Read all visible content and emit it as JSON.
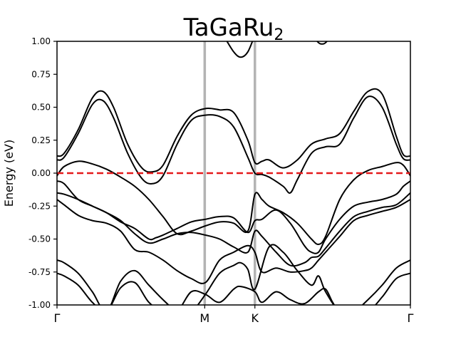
{
  "chart_data": {
    "type": "line",
    "title": "TaGaRu",
    "title_subscript": "2",
    "ylabel": "Energy (eV)",
    "xlabel": "",
    "ylim": [
      -1.0,
      1.0
    ],
    "yticks": [
      "1.00",
      "0.75",
      "0.50",
      "0.25",
      "0.00",
      "-0.25",
      "-0.50",
      "-0.75",
      "-1.00"
    ],
    "ytick_values": [
      1.0,
      0.75,
      0.5,
      0.25,
      0.0,
      -0.25,
      -0.5,
      -0.75,
      -1.0
    ],
    "xlim": [
      0,
      1
    ],
    "kpoints": [
      {
        "label": "Γ",
        "x": 0.0
      },
      {
        "label": "M",
        "x": 0.418
      },
      {
        "label": "K",
        "x": 0.56
      },
      {
        "label": "Γ",
        "x": 1.0
      }
    ],
    "fermi_level": {
      "y": 0.0,
      "color": "#e41a1c",
      "style": "dashed"
    },
    "band_color": "#000000",
    "kpoint_line_color": "#b3b3b3",
    "bands": [
      {
        "x": [
          0,
          0.02,
          0.06,
          0.1,
          0.13,
          0.16,
          0.2,
          0.24,
          0.27,
          0.3,
          0.34,
          0.38,
          0.42,
          0.46,
          0.5,
          0.54,
          0.56,
          0.58,
          0.6,
          0.64,
          0.68,
          0.72,
          0.76,
          0.8,
          0.84,
          0.88,
          0.92,
          0.96,
          0.98,
          1.0
        ],
        "y": [
          0.13,
          0.15,
          0.33,
          0.57,
          0.62,
          0.5,
          0.22,
          0.04,
          0.01,
          0.06,
          0.28,
          0.44,
          0.49,
          0.48,
          0.46,
          0.25,
          0.08,
          0.09,
          0.1,
          0.04,
          0.1,
          0.22,
          0.26,
          0.3,
          0.47,
          0.62,
          0.6,
          0.28,
          0.14,
          0.13
        ]
      },
      {
        "x": [
          0,
          0.02,
          0.06,
          0.1,
          0.13,
          0.16,
          0.2,
          0.24,
          0.27,
          0.3,
          0.34,
          0.38,
          0.42,
          0.46,
          0.5,
          0.54,
          0.56,
          0.58,
          0.6,
          0.64,
          0.66,
          0.68,
          0.72,
          0.76,
          0.8,
          0.84,
          0.88,
          0.92,
          0.96,
          0.98,
          1.0
        ],
        "y": [
          0.1,
          0.12,
          0.3,
          0.52,
          0.55,
          0.42,
          0.15,
          -0.04,
          -0.08,
          -0.02,
          0.22,
          0.4,
          0.44,
          0.43,
          0.35,
          0.12,
          0.0,
          -0.01,
          -0.03,
          -0.1,
          -0.15,
          -0.05,
          0.15,
          0.2,
          0.22,
          0.42,
          0.58,
          0.5,
          0.22,
          0.11,
          0.1
        ]
      },
      {
        "x": [
          0,
          0.02,
          0.06,
          0.1,
          0.14,
          0.18,
          0.22,
          0.26,
          0.3,
          0.34,
          0.38,
          0.42,
          0.46,
          0.5,
          0.54,
          0.56,
          0.58,
          0.6,
          0.64,
          0.68,
          0.72,
          0.74,
          0.76,
          0.8,
          0.84,
          0.88,
          0.92,
          0.96,
          0.98,
          1.0
        ],
        "y": [
          -0.02,
          0.05,
          0.09,
          0.07,
          0.03,
          -0.03,
          -0.1,
          -0.2,
          -0.33,
          -0.46,
          -0.44,
          -0.4,
          -0.37,
          -0.38,
          -0.44,
          -0.16,
          -0.2,
          -0.25,
          -0.3,
          -0.38,
          -0.5,
          -0.54,
          -0.48,
          -0.2,
          -0.05,
          0.02,
          0.05,
          0.08,
          0.06,
          -0.02
        ]
      },
      {
        "x": [
          0,
          0.02,
          0.06,
          0.1,
          0.14,
          0.18,
          0.22,
          0.26,
          0.28,
          0.3,
          0.34,
          0.38,
          0.42,
          0.46,
          0.5,
          0.54,
          0.56,
          0.58,
          0.62,
          0.66,
          0.7,
          0.72,
          0.74,
          0.76,
          0.8,
          0.84,
          0.88,
          0.92,
          0.96,
          0.98,
          1.0
        ],
        "y": [
          -0.06,
          -0.08,
          -0.2,
          -0.25,
          -0.3,
          -0.37,
          -0.42,
          -0.5,
          -0.49,
          -0.47,
          -0.42,
          -0.37,
          -0.35,
          -0.33,
          -0.34,
          -0.45,
          -0.36,
          -0.35,
          -0.28,
          -0.38,
          -0.55,
          -0.6,
          -0.6,
          -0.5,
          -0.35,
          -0.25,
          -0.22,
          -0.2,
          -0.16,
          -0.1,
          -0.06
        ]
      },
      {
        "x": [
          0,
          0.02,
          0.06,
          0.1,
          0.14,
          0.18,
          0.22,
          0.26,
          0.3,
          0.34,
          0.38,
          0.42,
          0.46,
          0.5,
          0.54,
          0.56,
          0.58,
          0.62,
          0.66,
          0.7,
          0.72,
          0.74,
          0.76,
          0.8,
          0.84,
          0.88,
          0.92,
          0.96,
          1.0
        ],
        "y": [
          -0.15,
          -0.16,
          -0.2,
          -0.25,
          -0.3,
          -0.36,
          -0.46,
          -0.53,
          -0.5,
          -0.46,
          -0.45,
          -0.47,
          -0.5,
          -0.56,
          -0.6,
          -0.44,
          -0.48,
          -0.6,
          -0.7,
          -0.68,
          -0.64,
          -0.63,
          -0.57,
          -0.44,
          -0.33,
          -0.29,
          -0.26,
          -0.24,
          -0.15
        ]
      },
      {
        "x": [
          0,
          0.02,
          0.06,
          0.1,
          0.14,
          0.18,
          0.22,
          0.26,
          0.3,
          0.34,
          0.38,
          0.42,
          0.46,
          0.5,
          0.54,
          0.56,
          0.58,
          0.62,
          0.66,
          0.7,
          0.72,
          0.74,
          0.76,
          0.8,
          0.84,
          0.88,
          0.92,
          0.96,
          1.0
        ],
        "y": [
          -0.2,
          -0.24,
          -0.32,
          -0.36,
          -0.38,
          -0.44,
          -0.58,
          -0.6,
          -0.66,
          -0.74,
          -0.8,
          -0.83,
          -0.66,
          -0.6,
          -0.55,
          -0.6,
          -0.75,
          -0.72,
          -0.75,
          -0.74,
          -0.72,
          -0.66,
          -0.6,
          -0.48,
          -0.36,
          -0.32,
          -0.29,
          -0.26,
          -0.2
        ]
      },
      {
        "x": [
          0,
          0.02,
          0.06,
          0.1,
          0.14,
          0.18,
          0.22,
          0.26,
          0.3,
          0.34,
          0.38,
          0.42,
          0.46,
          0.5,
          0.52,
          0.54,
          0.56,
          0.6,
          0.64,
          0.68,
          0.72,
          0.74,
          0.76,
          0.8,
          0.84,
          0.88,
          0.92,
          0.96,
          1.0
        ],
        "y": [
          -0.66,
          -0.68,
          -0.76,
          -0.9,
          -1.05,
          -0.82,
          -0.74,
          -0.85,
          -0.96,
          -1.05,
          -1.05,
          -0.92,
          -0.76,
          -0.7,
          -0.68,
          -0.73,
          -0.88,
          -0.56,
          -0.6,
          -0.74,
          -0.85,
          -0.78,
          -0.9,
          -1.05,
          -1.05,
          -0.96,
          -0.85,
          -0.72,
          -0.66
        ]
      },
      {
        "x": [
          0,
          0.02,
          0.06,
          0.1,
          0.14,
          0.18,
          0.22,
          0.26,
          0.3,
          0.34,
          0.38,
          0.42,
          0.46,
          0.5,
          0.52,
          0.56,
          0.58,
          0.62,
          0.66,
          0.7,
          0.74,
          0.76,
          0.78,
          0.8,
          0.84,
          0.88,
          0.92,
          0.96,
          1.0
        ],
        "y": [
          -0.76,
          -0.78,
          -0.85,
          -0.98,
          -1.05,
          -0.87,
          -0.83,
          -0.98,
          -1.05,
          -1.05,
          -0.9,
          -0.92,
          -0.98,
          -0.88,
          -0.86,
          -0.9,
          -0.98,
          -0.9,
          -0.96,
          -0.99,
          -0.9,
          -0.88,
          -0.98,
          -1.05,
          -1.05,
          -1.05,
          -0.94,
          -0.8,
          -0.76
        ]
      },
      {
        "x": [
          0.47,
          0.5,
          0.52,
          0.54,
          0.56
        ],
        "y": [
          1.05,
          0.92,
          0.88,
          0.92,
          1.05
        ]
      },
      {
        "x": [
          0.72,
          0.74,
          0.75,
          0.76,
          0.78
        ],
        "y": [
          1.05,
          0.99,
          0.98,
          0.99,
          1.05
        ]
      }
    ]
  }
}
